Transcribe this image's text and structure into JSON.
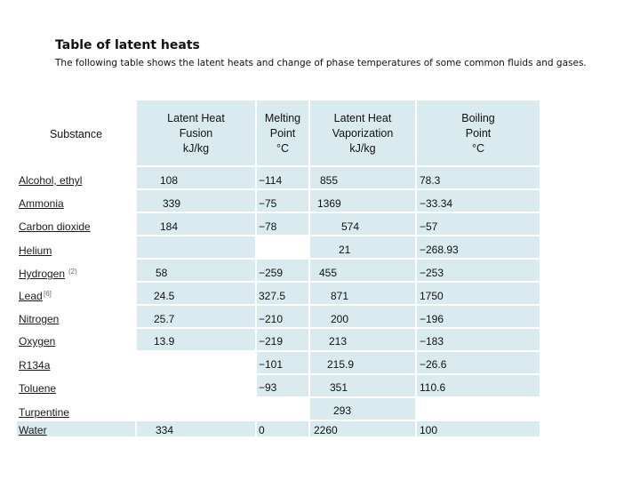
{
  "title": "Table of latent heats",
  "subtitle": "The following table shows the latent heats and change of phase temperatures of some common fluids and gases.",
  "table": {
    "headers": {
      "substance": "Substance",
      "fusion": [
        "Latent Heat",
        "Fusion",
        "kJ/kg"
      ],
      "melting": [
        "Melting",
        "Point",
        "°C"
      ],
      "vaporization": [
        "Latent Heat",
        "Vaporization",
        "kJ/kg"
      ],
      "boiling": [
        "Boiling",
        "Point",
        "°C"
      ]
    },
    "rows": [
      {
        "substance": "Alcohol, ethyl",
        "note": "",
        "fusion": "108",
        "melting": "−114",
        "vaporization": "855",
        "boiling": "78.3"
      },
      {
        "substance": "Ammonia",
        "note": "",
        "fusion": "339",
        "melting": "−75",
        "vaporization": "1369",
        "boiling": "−33.34"
      },
      {
        "substance": "Carbon dioxide",
        "note": "",
        "fusion": "184",
        "melting": "−78",
        "vaporization": "574",
        "boiling": "−57"
      },
      {
        "substance": "Helium",
        "note": "",
        "fusion": "",
        "melting": "",
        "vaporization": "21",
        "boiling": "−268.93"
      },
      {
        "substance": "Hydrogen",
        "note": "(2)",
        "fusion": "58",
        "melting": "−259",
        "vaporization": "455",
        "boiling": "−253"
      },
      {
        "substance": "Lead",
        "note": "[6]",
        "fusion": "24.5",
        "melting": "327.5",
        "vaporization": "871",
        "boiling": "1750"
      },
      {
        "substance": "Nitrogen",
        "note": "",
        "fusion": "25.7",
        "melting": "−210",
        "vaporization": "200",
        "boiling": "−196"
      },
      {
        "substance": "Oxygen",
        "note": "",
        "fusion": "13.9",
        "melting": "−219",
        "vaporization": "213",
        "boiling": "−183"
      },
      {
        "substance": "R134a",
        "note": "",
        "fusion": "",
        "melting": "−101",
        "vaporization": "215.9",
        "boiling": "−26.6"
      },
      {
        "substance": "Toluene",
        "note": "",
        "fusion": "",
        "melting": "−93",
        "vaporization": "351",
        "boiling": "110.6"
      },
      {
        "substance": "Turpentine",
        "note": "",
        "fusion": "",
        "melting": "",
        "vaporization": "293",
        "boiling": ""
      },
      {
        "substance": "Water",
        "note": "",
        "fusion": "334",
        "melting": "0",
        "vaporization": "2260",
        "boiling": "100"
      }
    ]
  }
}
